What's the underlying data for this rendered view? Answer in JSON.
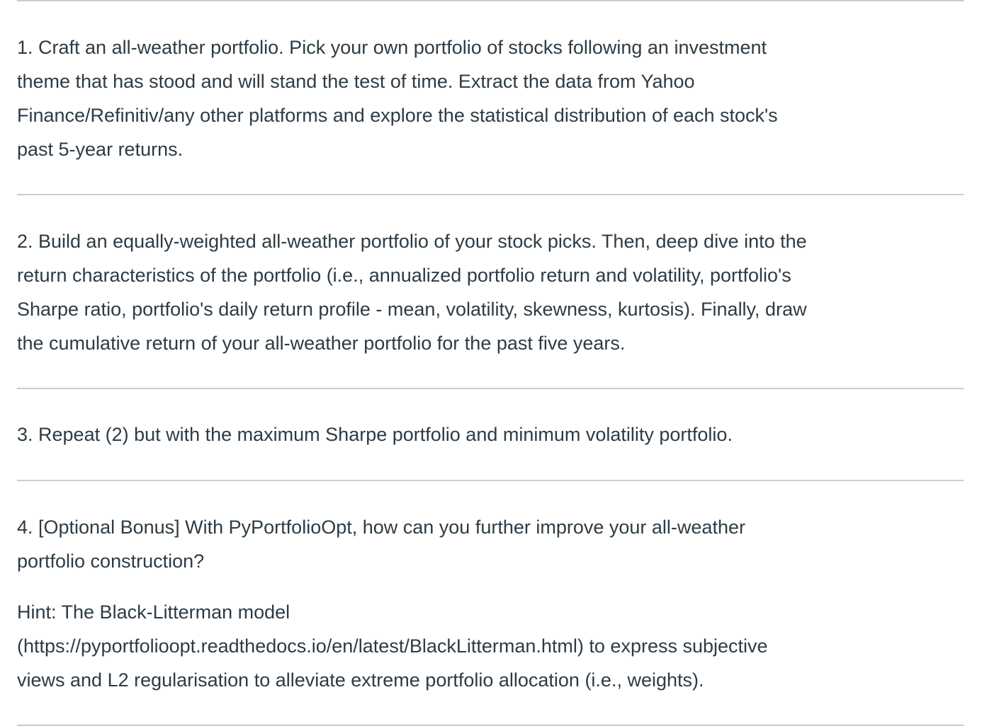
{
  "questions": [
    {
      "lines": [
        "1. Craft an all-weather portfolio. Pick your own portfolio of stocks following an investment",
        "theme that has stood and will stand the test of time. Extract the data from Yahoo",
        "Finance/Refinitiv/any other platforms and explore the statistical distribution of each stock's",
        "past 5-year returns."
      ]
    },
    {
      "lines": [
        "2. Build an equally-weighted all-weather portfolio of your stock picks. Then, deep dive into the",
        "return characteristics of the portfolio (i.e., annualized portfolio return and volatility, portfolio's",
        "Sharpe ratio, portfolio's daily return profile - mean, volatility, skewness, kurtosis). Finally, draw",
        "the cumulative return of your all-weather portfolio for the past five years."
      ]
    },
    {
      "lines": [
        "3. Repeat (2) but with the maximum Sharpe portfolio and minimum volatility portfolio."
      ]
    },
    {
      "lines": [
        "4. [Optional Bonus] With PyPortfolioOpt, how can you further improve your all-weather",
        "portfolio construction?"
      ],
      "hint_lines": [
        "Hint: The Black-Litterman model",
        "(https://pyportfolioopt.readthedocs.io/en/latest/BlackLitterman.html) to express subjective",
        "views and L2 regularisation to alleviate extreme portfolio allocation (i.e., weights)."
      ]
    }
  ]
}
